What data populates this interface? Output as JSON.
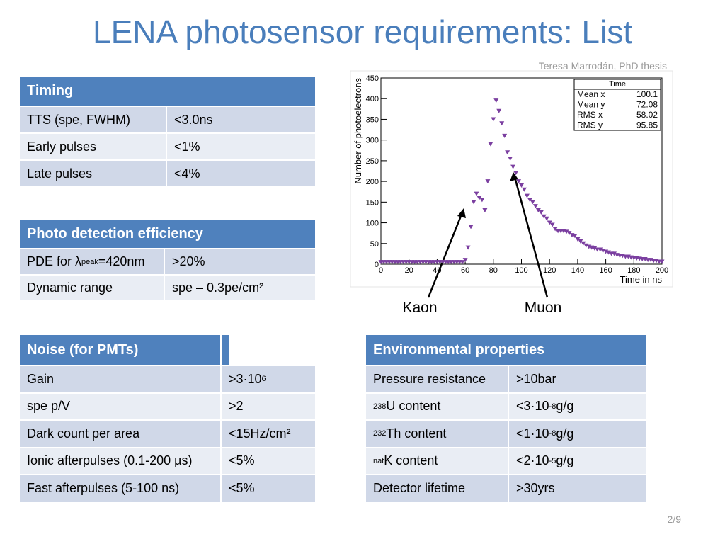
{
  "title": "LENA photosensor requirements: List",
  "credit": "Teresa Marrodán, PhD  thesis",
  "page": "2/9",
  "tables": [
    {
      "header": [
        "Timing"
      ],
      "rows": [
        [
          "TTS (spe, FWHM)",
          "<3.0ns"
        ],
        [
          "Early pulses",
          "<1%"
        ],
        [
          "Late pulses",
          "<4%"
        ]
      ]
    },
    {
      "header": [
        "Photo detection efficiency"
      ],
      "rows": [
        [
          {
            "before": "PDE for λ",
            "sub": "peak",
            "after": "=420nm"
          },
          ">20%"
        ],
        [
          "Dynamic range",
          "spe – 0.3pe/cm²"
        ]
      ]
    },
    {
      "header": [
        "Noise (for PMTs)"
      ],
      "rows": [
        [
          "Gain",
          {
            "before": ">3·10",
            "sup": "6"
          }
        ],
        [
          "spe p/V",
          ">2"
        ],
        [
          "Dark count per area",
          "<15Hz/cm²"
        ],
        [
          "Ionic afterpulses (0.1-200 µs)",
          "<5%"
        ],
        [
          "Fast afterpulses (5-100 ns)",
          "<5%"
        ]
      ]
    },
    {
      "header": [
        "Environmental properties"
      ],
      "rows": [
        [
          "Pressure resistance",
          ">10bar"
        ],
        [
          {
            "sup": "238",
            "after": "U content"
          },
          {
            "before": "<3·10",
            "sup": "-8",
            "after": " g/g"
          }
        ],
        [
          {
            "sup": "232",
            "after": "Th content"
          },
          {
            "before": "<1·10",
            "sup": "-8",
            "after": " g/g"
          }
        ],
        [
          {
            "sup": "nat",
            "after": "K content"
          },
          {
            "before": "<2·10",
            "sup": "-5",
            "after": " g/g"
          }
        ],
        [
          "Detector lifetime",
          ">30yrs"
        ]
      ]
    }
  ],
  "chart_data": {
    "type": "scatter",
    "xlabel": "Time in ns",
    "ylabel": "Number of photoelectrons",
    "color": "#7b3fa0",
    "xlim": [
      0,
      200
    ],
    "ylim": [
      0,
      450
    ],
    "xticks": [
      0,
      20,
      40,
      60,
      80,
      100,
      120,
      140,
      160,
      180,
      200
    ],
    "yticks": [
      0,
      50,
      100,
      150,
      200,
      250,
      300,
      350,
      400,
      450
    ],
    "stats": {
      "title": "Time",
      "entries": [
        [
          "Mean x",
          "100.1"
        ],
        [
          "Mean y",
          "72.08"
        ],
        [
          "RMS x",
          "58.02"
        ],
        [
          "RMS y",
          "95.85"
        ]
      ]
    },
    "annotations": [
      "Kaon",
      "Muon"
    ],
    "series": [
      {
        "name": "Time",
        "x": [
          0,
          2,
          4,
          6,
          8,
          10,
          12,
          14,
          16,
          18,
          20,
          22,
          24,
          26,
          28,
          30,
          32,
          34,
          36,
          38,
          40,
          42,
          44,
          46,
          48,
          50,
          52,
          54,
          56,
          58,
          60,
          62,
          64,
          66,
          68,
          70,
          72,
          74,
          76,
          78,
          80,
          82,
          84,
          86,
          88,
          90,
          92,
          94,
          96,
          98,
          100,
          102,
          104,
          106,
          108,
          110,
          112,
          114,
          116,
          118,
          120,
          122,
          124,
          126,
          128,
          130,
          132,
          134,
          136,
          138,
          140,
          142,
          144,
          146,
          148,
          150,
          152,
          154,
          156,
          158,
          160,
          162,
          164,
          166,
          168,
          170,
          172,
          174,
          176,
          178,
          180,
          182,
          184,
          186,
          188,
          190,
          192,
          194,
          196,
          198,
          200
        ],
        "values": [
          5,
          5,
          5,
          5,
          5,
          5,
          5,
          5,
          5,
          5,
          5,
          5,
          5,
          5,
          5,
          5,
          5,
          5,
          5,
          5,
          5,
          5,
          5,
          5,
          5,
          5,
          5,
          5,
          5,
          5,
          10,
          40,
          90,
          150,
          170,
          160,
          155,
          130,
          200,
          290,
          350,
          395,
          370,
          340,
          310,
          270,
          255,
          235,
          220,
          200,
          190,
          180,
          165,
          155,
          150,
          140,
          130,
          125,
          115,
          110,
          100,
          95,
          85,
          80,
          80,
          80,
          78,
          75,
          70,
          68,
          60,
          55,
          50,
          45,
          42,
          40,
          38,
          35,
          35,
          32,
          30,
          28,
          25,
          25,
          22,
          20,
          20,
          18,
          18,
          16,
          15,
          14,
          13,
          12,
          12,
          10,
          10,
          8,
          8,
          6,
          6
        ]
      }
    ]
  }
}
